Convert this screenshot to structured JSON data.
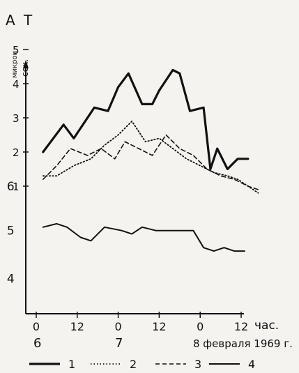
{
  "chart_data": {
    "type": "line",
    "title": "А T",
    "ylabel": "микрон сек.",
    "ylabel_top": "микрон",
    "ylabel_bottom": "сек.",
    "yticks": [
      "1",
      "2",
      "3",
      "4",
      "5"
    ],
    "ylim": [
      0.5,
      5.5
    ],
    "x_day_labels": [
      "6",
      "7",
      "8 февраля 1969 г."
    ],
    "xticks": [
      {
        "hour": 0,
        "label": "0"
      },
      {
        "hour": 12,
        "label": "12"
      },
      {
        "hour": 24,
        "label": "0"
      },
      {
        "hour": 36,
        "label": "12"
      },
      {
        "hour": 48,
        "label": "0"
      },
      {
        "hour": 60,
        "label": "12"
      }
    ],
    "xunit": "час.",
    "xlim": [
      -2,
      66
    ],
    "annotations": [
      {
        "text": "6",
        "hour": -7.5,
        "y": 1.0
      },
      {
        "text": "5",
        "hour": -7.5,
        "y": -0.3
      },
      {
        "text": "4",
        "hour": -7.5,
        "y": -1.7
      }
    ],
    "series": [
      {
        "name": "1",
        "style": "solid-thick",
        "x": [
          2,
          8,
          11,
          17,
          21,
          24,
          27,
          31,
          34,
          36,
          40,
          42,
          45,
          49,
          51,
          53,
          56,
          59,
          62
        ],
        "y": [
          2.0,
          2.8,
          2.4,
          3.3,
          3.2,
          3.9,
          4.3,
          3.4,
          3.4,
          3.8,
          4.4,
          4.3,
          3.2,
          3.3,
          1.5,
          2.1,
          1.5,
          1.8,
          1.8
        ]
      },
      {
        "name": "2",
        "style": "dotted",
        "x": [
          2,
          6,
          11,
          16,
          20,
          24,
          28,
          32,
          36,
          40,
          44,
          48,
          52,
          56,
          59,
          62,
          65
        ],
        "y": [
          1.3,
          1.3,
          1.6,
          1.8,
          2.2,
          2.5,
          2.9,
          2.3,
          2.4,
          2.1,
          1.8,
          1.6,
          1.4,
          1.3,
          1.2,
          1.0,
          0.8
        ]
      },
      {
        "name": "3",
        "style": "dashed",
        "x": [
          2,
          6,
          10,
          15,
          19,
          23,
          26,
          30,
          34,
          38,
          42,
          46,
          50,
          54,
          58,
          62,
          65
        ],
        "y": [
          1.2,
          1.6,
          2.1,
          1.9,
          2.1,
          1.8,
          2.3,
          2.1,
          1.9,
          2.5,
          2.1,
          1.9,
          1.5,
          1.3,
          1.2,
          1.0,
          0.9
        ]
      },
      {
        "name": "4",
        "style": "solid-thin",
        "x": [
          2,
          6,
          9,
          13,
          16,
          20,
          25,
          28,
          31,
          35,
          39,
          43,
          46,
          49,
          52,
          55,
          58,
          61
        ],
        "y": [
          -0.2,
          -0.1,
          -0.2,
          -0.5,
          -0.6,
          -0.2,
          -0.3,
          -0.4,
          -0.2,
          -0.3,
          -0.3,
          -0.3,
          -0.3,
          -0.8,
          -0.9,
          -0.8,
          -0.9,
          -0.9
        ]
      }
    ],
    "legend": {
      "placement": "bottom"
    },
    "grid": false
  }
}
